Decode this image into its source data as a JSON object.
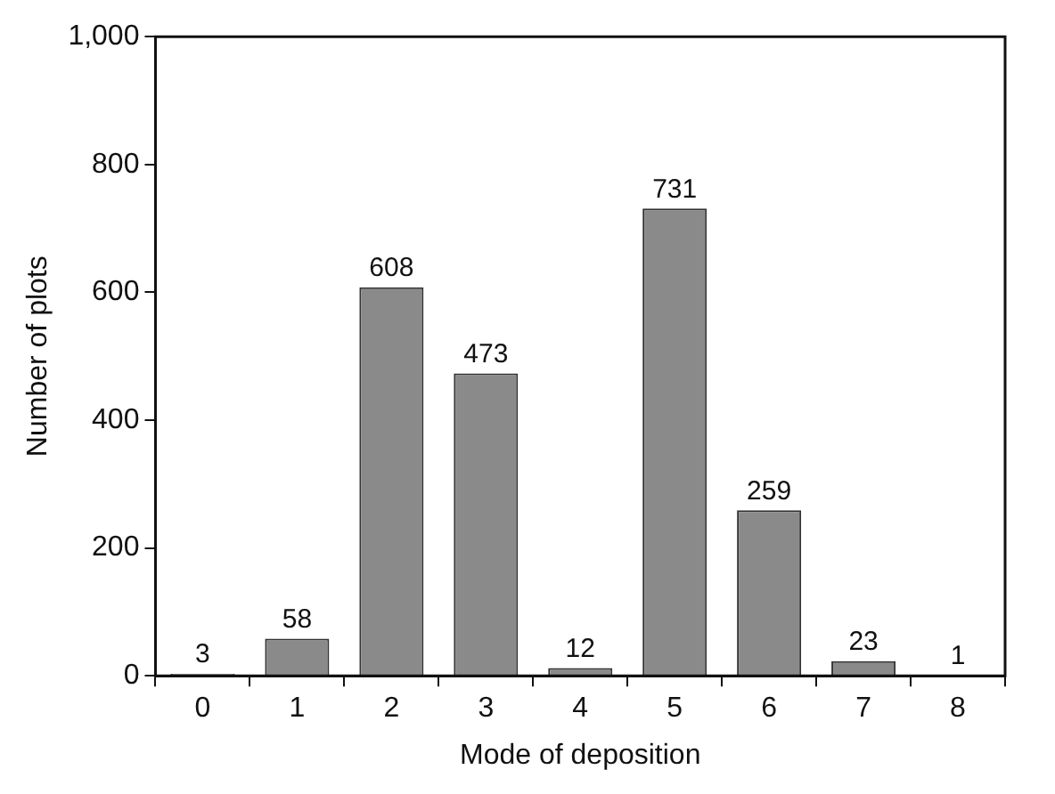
{
  "chart_data": {
    "type": "bar",
    "xlabel": "Mode of deposition",
    "ylabel": "Number of plots",
    "categories": [
      "0",
      "1",
      "2",
      "3",
      "4",
      "5",
      "6",
      "7",
      "8"
    ],
    "values": [
      3,
      58,
      608,
      473,
      12,
      731,
      259,
      23,
      1
    ],
    "color": "#8a8a8a",
    "ylim": [
      0,
      1000
    ],
    "yticks": [
      0,
      200,
      400,
      600,
      800,
      {
        "value": 1000,
        "label": "1,000"
      }
    ],
    "grid": false,
    "legend": false,
    "data_labels": true
  }
}
